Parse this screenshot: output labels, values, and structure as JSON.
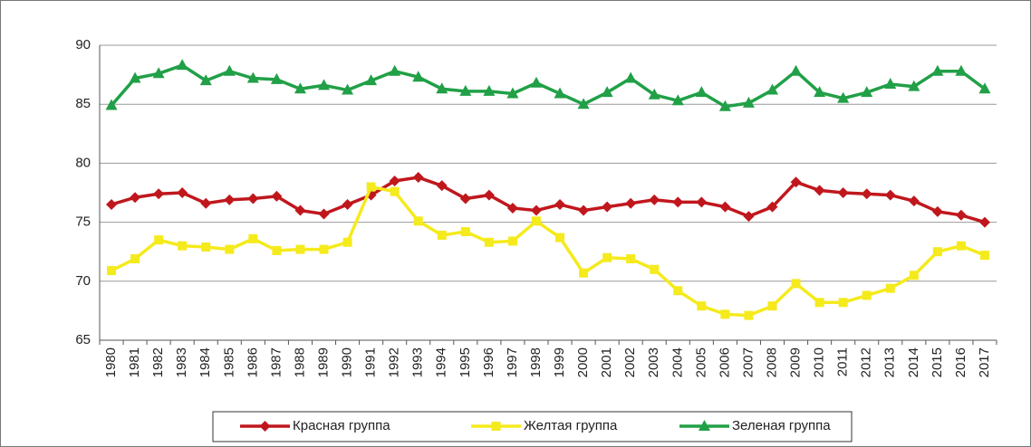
{
  "chart_data": {
    "type": "line",
    "categories": [
      "1980",
      "1981",
      "1982",
      "1983",
      "1984",
      "1985",
      "1986",
      "1987",
      "1988",
      "1989",
      "1990",
      "1991",
      "1992",
      "1993",
      "1994",
      "1995",
      "1996",
      "1997",
      "1998",
      "1999",
      "2000",
      "2001",
      "2002",
      "2003",
      "2004",
      "2005",
      "2006",
      "2007",
      "2008",
      "2009",
      "2010",
      "2011",
      "2012",
      "2013",
      "2014",
      "2015",
      "2016",
      "2017"
    ],
    "series": [
      {
        "name": "Красная группа",
        "color": "#c0171d",
        "marker": "diamond",
        "values": [
          76.5,
          77.1,
          77.4,
          77.5,
          76.6,
          76.9,
          77.0,
          77.2,
          76.0,
          75.7,
          76.5,
          77.3,
          78.5,
          78.8,
          78.1,
          77.0,
          77.3,
          76.2,
          76.0,
          76.5,
          76.0,
          76.3,
          76.6,
          76.9,
          76.7,
          76.7,
          76.3,
          75.5,
          76.3,
          78.4,
          77.7,
          77.5,
          77.4,
          77.3,
          76.8,
          75.9,
          75.6,
          75.0
        ]
      },
      {
        "name": "Желтая группа",
        "color": "#f5ea1c",
        "marker": "square",
        "values": [
          70.9,
          71.9,
          73.5,
          73.0,
          72.9,
          72.7,
          73.6,
          72.6,
          72.7,
          72.7,
          73.3,
          78.0,
          77.6,
          75.1,
          73.9,
          74.2,
          73.3,
          73.4,
          75.1,
          73.7,
          70.7,
          72.0,
          71.9,
          71.0,
          69.2,
          67.9,
          67.2,
          67.1,
          67.9,
          69.8,
          68.2,
          68.2,
          68.8,
          69.4,
          70.5,
          72.5,
          73.0,
          72.2
        ]
      },
      {
        "name": "Зеленая группа",
        "color": "#21a047",
        "marker": "triangle",
        "values": [
          84.9,
          87.2,
          87.6,
          88.3,
          87.0,
          87.8,
          87.2,
          87.1,
          86.3,
          86.6,
          86.2,
          87.0,
          87.8,
          87.3,
          86.3,
          86.1,
          86.1,
          85.9,
          86.8,
          85.9,
          85.0,
          86.0,
          87.2,
          85.8,
          85.3,
          86.0,
          84.8,
          85.1,
          86.2,
          87.8,
          86.0,
          85.5,
          86.0,
          86.7,
          86.5,
          87.8,
          87.8,
          86.3
        ]
      }
    ],
    "ylim": [
      65,
      90
    ],
    "yticks": [
      65,
      70,
      75,
      80,
      85,
      90
    ],
    "grid": true,
    "legend": "bottom"
  }
}
